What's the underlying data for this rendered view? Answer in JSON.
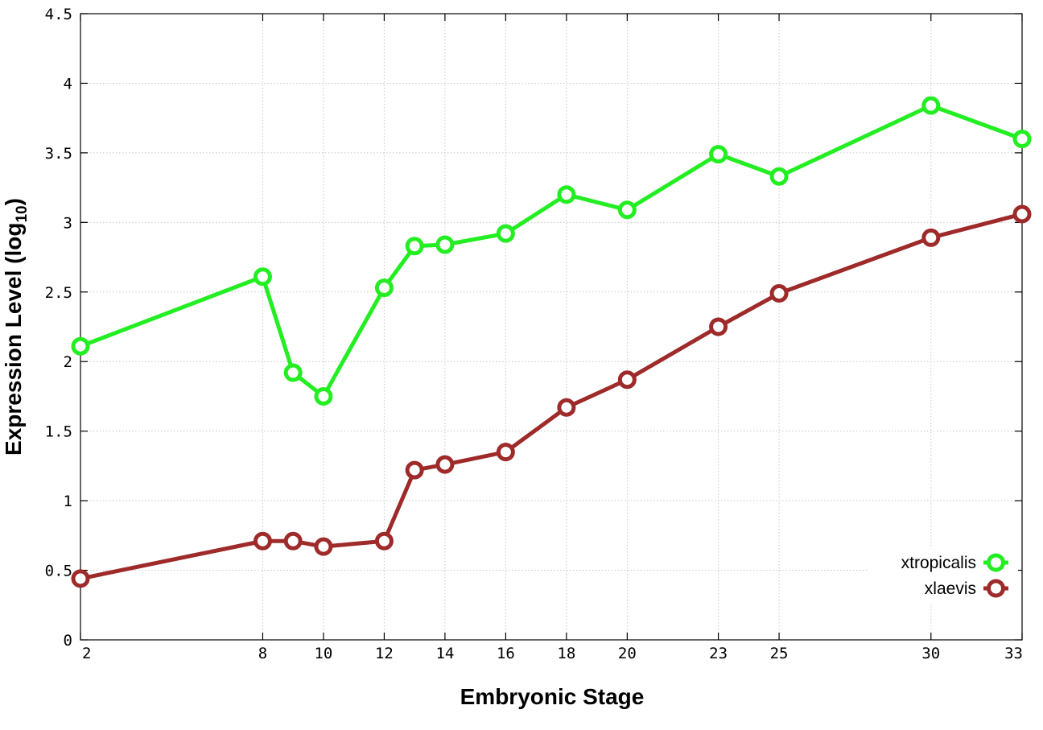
{
  "chart_data": {
    "type": "line",
    "xlabel": "Embryonic Stage",
    "ylabel_main": "Expression Level (log",
    "ylabel_sub": "10",
    "ylabel_close": ")",
    "x_ticks": [
      2,
      8,
      10,
      12,
      14,
      16,
      18,
      20,
      23,
      25,
      30,
      33
    ],
    "y_ticks": [
      "0",
      "0.5",
      "1",
      "1.5",
      "2",
      "2.5",
      "3",
      "3.5",
      "4",
      "4.5"
    ],
    "xlim": [
      2,
      33
    ],
    "ylim": [
      0,
      4.5
    ],
    "grid": true,
    "legend_position": "bottom-right",
    "x": [
      2,
      8,
      9,
      10,
      12,
      13,
      14,
      16,
      18,
      20,
      23,
      25,
      30,
      33
    ],
    "series": [
      {
        "name": "xtropicalis",
        "color": "#22ee22",
        "values": [
          2.11,
          2.61,
          1.92,
          1.75,
          2.53,
          2.83,
          2.84,
          2.92,
          3.2,
          3.09,
          3.49,
          3.33,
          3.84,
          3.6
        ]
      },
      {
        "name": "xlaevis",
        "color": "#9e2a2a",
        "values": [
          0.44,
          0.71,
          0.71,
          0.67,
          0.71,
          1.22,
          1.26,
          1.35,
          1.67,
          1.87,
          2.25,
          2.49,
          2.89,
          3.06
        ]
      }
    ]
  }
}
